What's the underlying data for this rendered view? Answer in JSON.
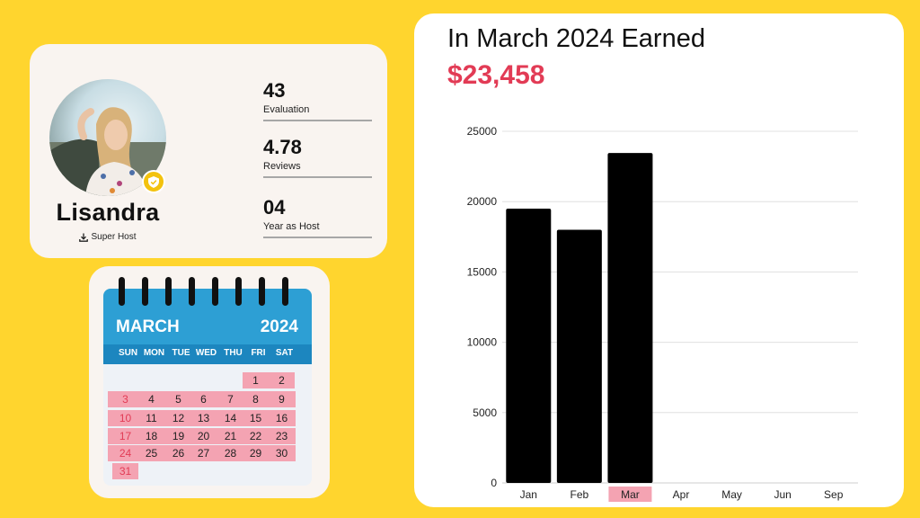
{
  "profile": {
    "name": "Lisandra",
    "role": "Super Host",
    "stats": [
      {
        "value": "43",
        "label": "Evaluation"
      },
      {
        "value": "4.78",
        "label": "Reviews"
      },
      {
        "value": "04",
        "label": "Year as Host"
      }
    ]
  },
  "calendar": {
    "month": "MARCH",
    "year": "2024",
    "weekdays": [
      "SUN",
      "MON",
      "TUE",
      "WED",
      "THU",
      "FRI",
      "SAT"
    ],
    "weeks": [
      [
        "",
        "",
        "",
        "",
        "",
        "1",
        "2"
      ],
      [
        "3",
        "4",
        "5",
        "6",
        "7",
        "8",
        "9"
      ],
      [
        "10",
        "11",
        "12",
        "13",
        "14",
        "15",
        "16"
      ],
      [
        "17",
        "18",
        "19",
        "20",
        "21",
        "22",
        "23"
      ],
      [
        "24",
        "25",
        "26",
        "27",
        "28",
        "29",
        "30"
      ],
      [
        "31",
        "",
        "",
        "",
        "",
        "",
        ""
      ]
    ]
  },
  "earnings": {
    "title": "In March 2024 Earned",
    "amount": "$23,458"
  },
  "chart_data": {
    "type": "bar",
    "categories": [
      "Jan",
      "Feb",
      "Mar",
      "Apr",
      "May",
      "Jun",
      "Sep"
    ],
    "values": [
      19500,
      18000,
      23458,
      0,
      0,
      0,
      0
    ],
    "title": "",
    "xlabel": "",
    "ylabel": "",
    "ylim": [
      0,
      25000
    ],
    "yticks": [
      0,
      5000,
      10000,
      15000,
      20000,
      25000
    ],
    "grid": true,
    "highlight_category": "Mar",
    "colors": {
      "bar": "#000000",
      "highlight": "#f4a3b2",
      "grid": "#e0e0e0"
    }
  }
}
